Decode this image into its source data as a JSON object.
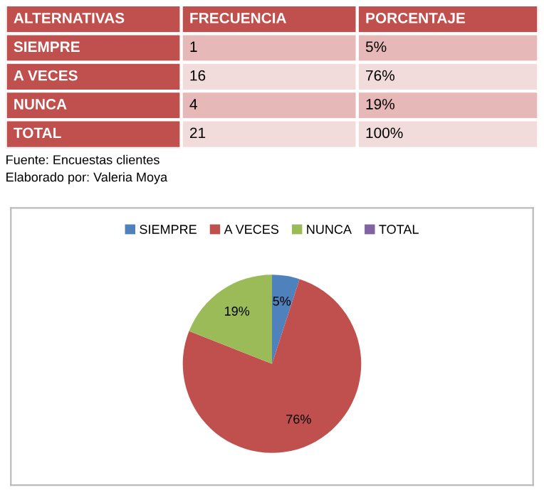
{
  "chart_data": [
    {
      "type": "other",
      "annotations": [
        "ALTERNATIVAS",
        "FRECUENCIA",
        "PORCENTAJE",
        "SIEMPRE",
        "1",
        "5%",
        "A VECES",
        "16",
        "76%",
        "NUNCA",
        "4",
        "19%",
        "TOTAL",
        "21",
        "100%"
      ]
    },
    {
      "type": "pie",
      "categories": [
        "SIEMPRE",
        "A VECES",
        "NUNCA",
        "TOTAL"
      ],
      "values": [
        5,
        76,
        19,
        null
      ],
      "colors": [
        "#4f81bd",
        "#c0504d",
        "#9bbb59",
        "#8064a2"
      ],
      "value_labels": [
        "5%",
        "76%",
        "19%",
        null
      ],
      "legend": "top",
      "annotations": [
        "Fuente: Encuestas clientes",
        "Elaborado por: Valeria Moya"
      ]
    }
  ]
}
